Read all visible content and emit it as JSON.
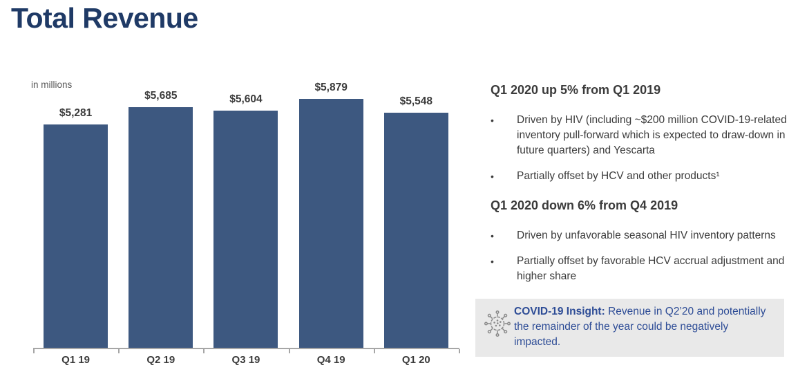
{
  "title": "Total Revenue",
  "chart_data": {
    "type": "bar",
    "title": "Total Revenue",
    "units_label": "in millions",
    "categories": [
      "Q1 19",
      "Q2 19",
      "Q3 19",
      "Q4 19",
      "Q1 20"
    ],
    "values": [
      5281,
      5685,
      5604,
      5879,
      5548
    ],
    "value_labels": [
      "$5,281",
      "$5,685",
      "$5,604",
      "$5,879",
      "$5,548"
    ],
    "ylim": [
      0,
      6000
    ],
    "grid": false,
    "legend": "none",
    "bar_color": "#3D5880"
  },
  "commentary": {
    "bullet_char": "•",
    "sections": [
      {
        "heading": "Q1 2020 up 5% from Q1 2019",
        "bullets": [
          "Driven by HIV (including ~$200 million COVID-19-related inventory pull-forward which is expected to draw-down in future quarters) and Yescarta",
          "Partially offset by HCV and other products¹"
        ]
      },
      {
        "heading": "Q1 2020 down 6% from Q4 2019",
        "bullets": [
          "Driven by unfavorable seasonal HIV inventory patterns",
          "Partially offset by favorable HCV accrual adjustment and higher share"
        ]
      }
    ],
    "insight": {
      "icon": "virus-icon",
      "label": "COVID-19 Insight:",
      "text": "Revenue in Q2’20 and potentially the remainder of the year could be negatively impacted."
    }
  },
  "colors": {
    "title_text": "#1F3A66",
    "bar": "#3D5880",
    "body_text": "#3B3B3B",
    "units_text": "#595959",
    "axis": "#A6A6A6",
    "insight_bg": "#E9E9E9",
    "insight_text": "#2D4C96",
    "icon_gray": "#8A8A8A"
  }
}
